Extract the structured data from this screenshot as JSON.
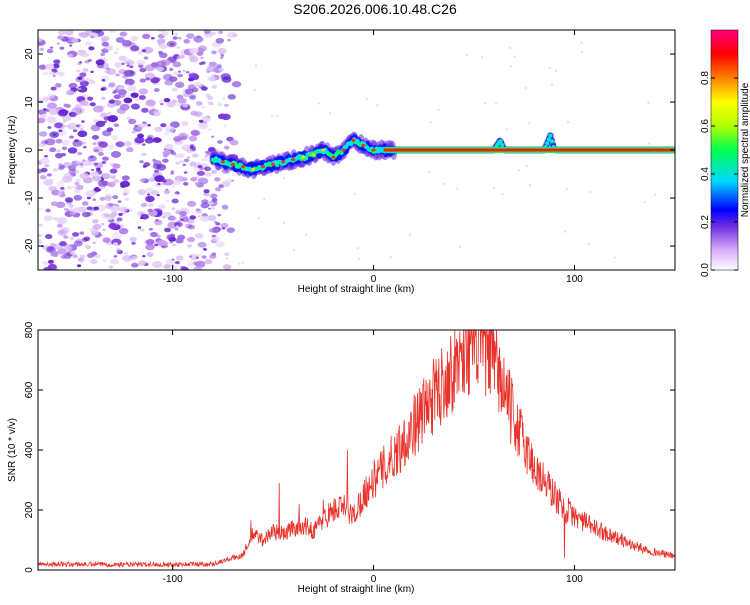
{
  "title": "S206.2026.006.10.48.C26",
  "chart_data": [
    {
      "type": "heatmap",
      "name": "spectrogram",
      "xlabel": "Height of straight line (km)",
      "ylabel": "Frequency (Hz)",
      "xlim": [
        -167,
        150
      ],
      "ylim": [
        -25,
        25
      ],
      "xticks": [
        -100,
        0,
        100
      ],
      "yticks": [
        20,
        10,
        0,
        -10,
        -20
      ],
      "colorbar": {
        "label": "Normalized spectral amplitude",
        "range": [
          0,
          1
        ],
        "ticks": [
          0.0,
          0.2,
          0.4,
          0.6,
          0.8
        ],
        "tick_labels": [
          "0.0",
          "0.2",
          "0.4",
          "0.6",
          "0.8"
        ],
        "colors": [
          "#ffffff",
          "#c890f0",
          "#7030e0",
          "#0000ff",
          "#00e0ff",
          "#00ff60",
          "#c0ff00",
          "#ffff00",
          "#ff8000",
          "#ff0000",
          "#ff0080"
        ]
      },
      "noise_region_x": [
        -167,
        -73
      ],
      "signal_track": {
        "x": [
          -80,
          -70,
          -60,
          -50,
          -40,
          -30,
          -25,
          -20,
          -15,
          -10,
          -5,
          0,
          10,
          60,
          63,
          65,
          70,
          75,
          80,
          85,
          88,
          90,
          95,
          150
        ],
        "freq": [
          -2,
          -3,
          -4,
          -3,
          -2,
          -1,
          0,
          -1.5,
          0,
          2,
          1,
          0,
          0,
          0,
          2,
          0,
          0,
          0,
          0,
          0,
          3,
          0,
          0,
          0
        ]
      }
    },
    {
      "type": "line",
      "name": "snr",
      "xlabel": "Height of straight line (km)",
      "ylabel": "SNR (10 * v/v)",
      "xlim": [
        -167,
        150
      ],
      "ylim": [
        0,
        800
      ],
      "xticks": [
        -100,
        0,
        100
      ],
      "yticks": [
        0,
        200,
        400,
        600,
        800
      ],
      "color": "#e8332b",
      "envelope": {
        "x": [
          -167,
          -120,
          -80,
          -65,
          -60,
          -55,
          -50,
          -45,
          -40,
          -35,
          -30,
          -25,
          -20,
          -15,
          -10,
          -5,
          0,
          10,
          20,
          30,
          40,
          45,
          50,
          55,
          60,
          65,
          70,
          80,
          90,
          95,
          100,
          110,
          120,
          130,
          140,
          150
        ],
        "y": [
          20,
          18,
          20,
          50,
          120,
          100,
          130,
          120,
          140,
          150,
          130,
          170,
          200,
          210,
          180,
          250,
          300,
          380,
          480,
          580,
          680,
          730,
          760,
          750,
          690,
          600,
          500,
          340,
          250,
          200,
          180,
          140,
          110,
          80,
          60,
          45
        ]
      },
      "spikes": [
        {
          "x": -61,
          "y": 165
        },
        {
          "x": -47,
          "y": 290
        },
        {
          "x": -37,
          "y": 220
        },
        {
          "x": -25,
          "y": 235
        },
        {
          "x": -13,
          "y": 400
        },
        {
          "x": 97,
          "y": 240
        },
        {
          "x": 95,
          "y": 40
        }
      ]
    }
  ]
}
